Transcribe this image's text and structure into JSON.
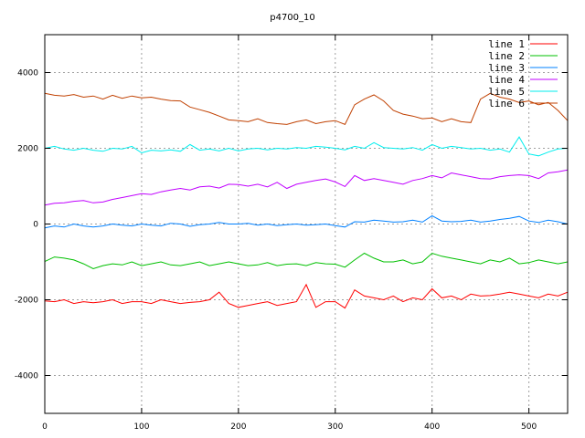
{
  "chart_data": {
    "type": "line",
    "title": "p4700_10",
    "xlabel": "",
    "ylabel": "",
    "xlim": [
      0,
      540
    ],
    "ylim": [
      -5000,
      5000
    ],
    "xticks": [
      0,
      100,
      200,
      300,
      400,
      500
    ],
    "yticks": [
      -4000,
      -2000,
      0,
      2000,
      4000
    ],
    "xtick_labels": [
      "0",
      "100",
      "200",
      "300",
      "400",
      "500"
    ],
    "ytick_labels": [
      "-4000",
      "-2000",
      "0",
      "2000",
      "4000"
    ],
    "grid": true,
    "legend_position": "top-right",
    "x": [
      0,
      10,
      20,
      30,
      40,
      50,
      60,
      70,
      80,
      90,
      100,
      110,
      120,
      130,
      140,
      150,
      160,
      170,
      180,
      190,
      200,
      210,
      220,
      230,
      240,
      250,
      260,
      270,
      280,
      290,
      300,
      310,
      320,
      330,
      340,
      350,
      360,
      370,
      380,
      390,
      400,
      410,
      420,
      430,
      440,
      450,
      460,
      470,
      480,
      490,
      500,
      510,
      520,
      530,
      540
    ],
    "series": [
      {
        "name": "line 1",
        "color": "#ff0000",
        "values": [
          -2030,
          -2050,
          -2000,
          -2100,
          -2050,
          -2080,
          -2050,
          -2000,
          -2100,
          -2050,
          -2050,
          -2100,
          -2000,
          -2050,
          -2100,
          -2070,
          -2050,
          -2000,
          -1800,
          -2100,
          -2200,
          -2150,
          -2100,
          -2050,
          -2150,
          -2100,
          -2050,
          -1600,
          -2200,
          -2050,
          -2050,
          -2220,
          -1740,
          -1900,
          -1950,
          -2000,
          -1900,
          -2050,
          -1950,
          -2000,
          -1710,
          -1950,
          -1900,
          -2000,
          -1850,
          -1900,
          -1890,
          -1850,
          -1800,
          -1850,
          -1900,
          -1950,
          -1850,
          -1900,
          -1800
        ]
      },
      {
        "name": "line 2",
        "color": "#00c000",
        "values": [
          -990,
          -870,
          -900,
          -950,
          -1050,
          -1180,
          -1100,
          -1050,
          -1080,
          -1000,
          -1100,
          -1050,
          -1000,
          -1080,
          -1100,
          -1050,
          -1000,
          -1100,
          -1050,
          -1000,
          -1050,
          -1100,
          -1080,
          -1020,
          -1100,
          -1060,
          -1050,
          -1100,
          -1020,
          -1050,
          -1060,
          -1140,
          -950,
          -770,
          -900,
          -1000,
          -1000,
          -950,
          -1050,
          -1000,
          -770,
          -850,
          -900,
          -950,
          -1000,
          -1050,
          -950,
          -1000,
          -900,
          -1050,
          -1020,
          -950,
          -1000,
          -1050,
          -1000
        ]
      },
      {
        "name": "line 3",
        "color": "#0080ff",
        "values": [
          -100,
          -50,
          -80,
          0,
          -50,
          -80,
          -50,
          0,
          -30,
          -50,
          0,
          -30,
          -50,
          20,
          0,
          -60,
          -20,
          0,
          40,
          0,
          0,
          20,
          -30,
          0,
          -40,
          -20,
          0,
          -30,
          -20,
          0,
          -40,
          -80,
          60,
          50,
          100,
          80,
          50,
          60,
          100,
          50,
          220,
          80,
          60,
          70,
          100,
          50,
          80,
          120,
          150,
          200,
          80,
          40,
          100,
          60,
          0
        ]
      },
      {
        "name": "line 4",
        "color": "#c000ff",
        "values": [
          500,
          550,
          560,
          600,
          620,
          560,
          580,
          650,
          700,
          750,
          800,
          780,
          850,
          900,
          940,
          900,
          980,
          1000,
          950,
          1050,
          1040,
          1000,
          1050,
          980,
          1100,
          940,
          1050,
          1100,
          1150,
          1190,
          1110,
          990,
          1280,
          1150,
          1200,
          1150,
          1100,
          1050,
          1150,
          1200,
          1280,
          1220,
          1350,
          1300,
          1250,
          1200,
          1190,
          1250,
          1280,
          1300,
          1280,
          1200,
          1350,
          1380,
          1430
        ]
      },
      {
        "name": "line 5",
        "color": "#00eeee",
        "values": [
          2000,
          2050,
          1980,
          1950,
          2000,
          1950,
          1920,
          2000,
          1980,
          2050,
          1880,
          1950,
          1930,
          1960,
          1920,
          2100,
          1950,
          1980,
          1930,
          2000,
          1930,
          1980,
          2000,
          1960,
          2000,
          1980,
          2020,
          2000,
          2050,
          2030,
          2000,
          1960,
          2050,
          2000,
          2150,
          2020,
          2000,
          1980,
          2020,
          1950,
          2100,
          2000,
          2050,
          2020,
          1980,
          2000,
          1950,
          1980,
          1900,
          2300,
          1850,
          1800,
          1900,
          1980,
          2000
        ]
      },
      {
        "name": "line 6",
        "color": "#c04000",
        "values": [
          3450,
          3400,
          3380,
          3420,
          3350,
          3380,
          3300,
          3400,
          3320,
          3380,
          3330,
          3350,
          3300,
          3260,
          3250,
          3090,
          3020,
          2950,
          2850,
          2750,
          2730,
          2700,
          2780,
          2680,
          2650,
          2630,
          2700,
          2750,
          2650,
          2700,
          2730,
          2630,
          3150,
          3300,
          3410,
          3250,
          3000,
          2900,
          2850,
          2780,
          2800,
          2700,
          2780,
          2700,
          2680,
          3300,
          3450,
          3350,
          3300,
          3210,
          3250,
          3150,
          3210,
          3000,
          2730
        ]
      }
    ]
  }
}
